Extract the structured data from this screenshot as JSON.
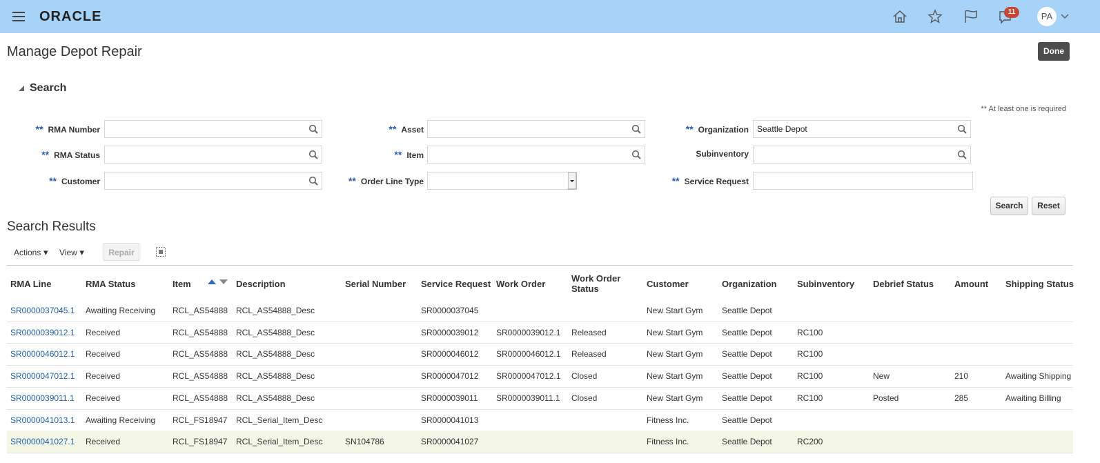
{
  "header": {
    "brand": "ORACLE",
    "notification_count": "11",
    "avatar": "PA"
  },
  "page": {
    "title": "Manage Depot Repair",
    "done": "Done"
  },
  "search": {
    "title": "Search",
    "note": "** At least one is required",
    "required_mark": "**",
    "fields": [
      {
        "label": "RMA Number",
        "required": true,
        "control": "lookup",
        "value": null
      },
      {
        "label": "Asset",
        "required": true,
        "control": "lookup",
        "value": null
      },
      {
        "label": "Organization",
        "required": true,
        "control": "lookup",
        "value": "Seattle Depot"
      },
      {
        "label": "RMA Status",
        "required": true,
        "control": "lookup",
        "value": null
      },
      {
        "label": "Item",
        "required": true,
        "control": "lookup",
        "value": null
      },
      {
        "label": "Subinventory",
        "required": false,
        "control": "lookup",
        "value": null
      },
      {
        "label": "Customer",
        "required": true,
        "control": "lookup",
        "value": null
      },
      {
        "label": "Order Line Type",
        "required": true,
        "control": "select",
        "value": null
      },
      {
        "label": "Service Request",
        "required": true,
        "control": "text",
        "value": null
      }
    ],
    "buttons": [
      "Search",
      "Reset"
    ]
  },
  "results": {
    "title": "Search Results",
    "menus": [
      "Actions",
      "View"
    ],
    "repair": "Repair",
    "sorted_column": 2,
    "columns": [
      "RMA Line",
      "RMA Status",
      "Item",
      "Description",
      "Serial Number",
      "Service Request",
      "Work Order",
      "Work Order Status",
      "Customer",
      "Organization",
      "Subinventory",
      "Debrief Status",
      "Amount",
      "Shipping Status"
    ],
    "rows": [
      [
        "SR0000037045.1",
        "Awaiting Receiving",
        "RCL_AS54888",
        "RCL_AS54888_Desc",
        null,
        "SR0000037045",
        null,
        null,
        "New Start Gym",
        "Seattle Depot",
        null,
        null,
        null,
        null
      ],
      [
        "SR0000039012.1",
        "Received",
        "RCL_AS54888",
        "RCL_AS54888_Desc",
        null,
        "SR0000039012",
        "SR0000039012.1",
        "Released",
        "New Start Gym",
        "Seattle Depot",
        "RC100",
        null,
        null,
        null
      ],
      [
        "SR0000046012.1",
        "Received",
        "RCL_AS54888",
        "RCL_AS54888_Desc",
        null,
        "SR0000046012",
        "SR0000046012.1",
        "Released",
        "New Start Gym",
        "Seattle Depot",
        "RC100",
        null,
        null,
        null
      ],
      [
        "SR0000047012.1",
        "Received",
        "RCL_AS54888",
        "RCL_AS54888_Desc",
        null,
        "SR0000047012",
        "SR0000047012.1",
        "Closed",
        "New Start Gym",
        "Seattle Depot",
        "RC100",
        "New",
        210,
        "Awaiting Shipping"
      ],
      [
        "SR0000039011.1",
        "Received",
        "RCL_AS54888",
        "RCL_AS54888_Desc",
        null,
        "SR0000039011",
        "SR0000039011.1",
        "Closed",
        "New Start Gym",
        "Seattle Depot",
        "RC100",
        "Posted",
        285,
        "Awaiting Billing"
      ],
      [
        "SR0000041013.1",
        "Awaiting Receiving",
        "RCL_FS18947",
        "RCL_Serial_Item_Desc",
        null,
        "SR0000041013",
        null,
        null,
        "Fitness Inc.",
        "Seattle Depot",
        null,
        null,
        null,
        null
      ],
      [
        "SR0000041027.1",
        "Received",
        "RCL_FS18947",
        "RCL_Serial_Item_Desc",
        "SN104786",
        "SR0000041027",
        null,
        null,
        "Fitness Inc.",
        "Seattle Depot",
        "RC200",
        null,
        null,
        null
      ]
    ],
    "selected_row": 6
  }
}
